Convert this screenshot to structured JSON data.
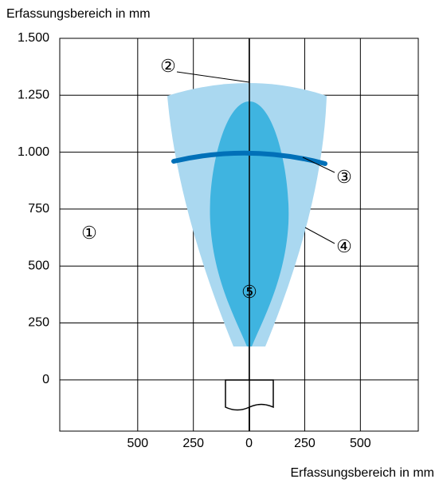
{
  "chart_data": {
    "type": "diagram",
    "y_label": "Erfassungsbereich in mm",
    "x_label": "Erfassungsbereich in mm",
    "xlim": [
      -850,
      760
    ],
    "ylim": [
      -225,
      1500
    ],
    "xticks": [
      {
        "value": -500,
        "label": "500"
      },
      {
        "value": -250,
        "label": "250"
      },
      0,
      250,
      500
    ],
    "yticks": [
      0,
      250,
      500,
      750,
      {
        "value": 1000,
        "label": "1.000"
      },
      {
        "value": 1250,
        "label": "1.250"
      },
      {
        "value": 1500,
        "label": "1.500"
      }
    ],
    "grid": true,
    "annotations": [
      "①",
      "②",
      "③",
      "④",
      "⑤"
    ]
  }
}
